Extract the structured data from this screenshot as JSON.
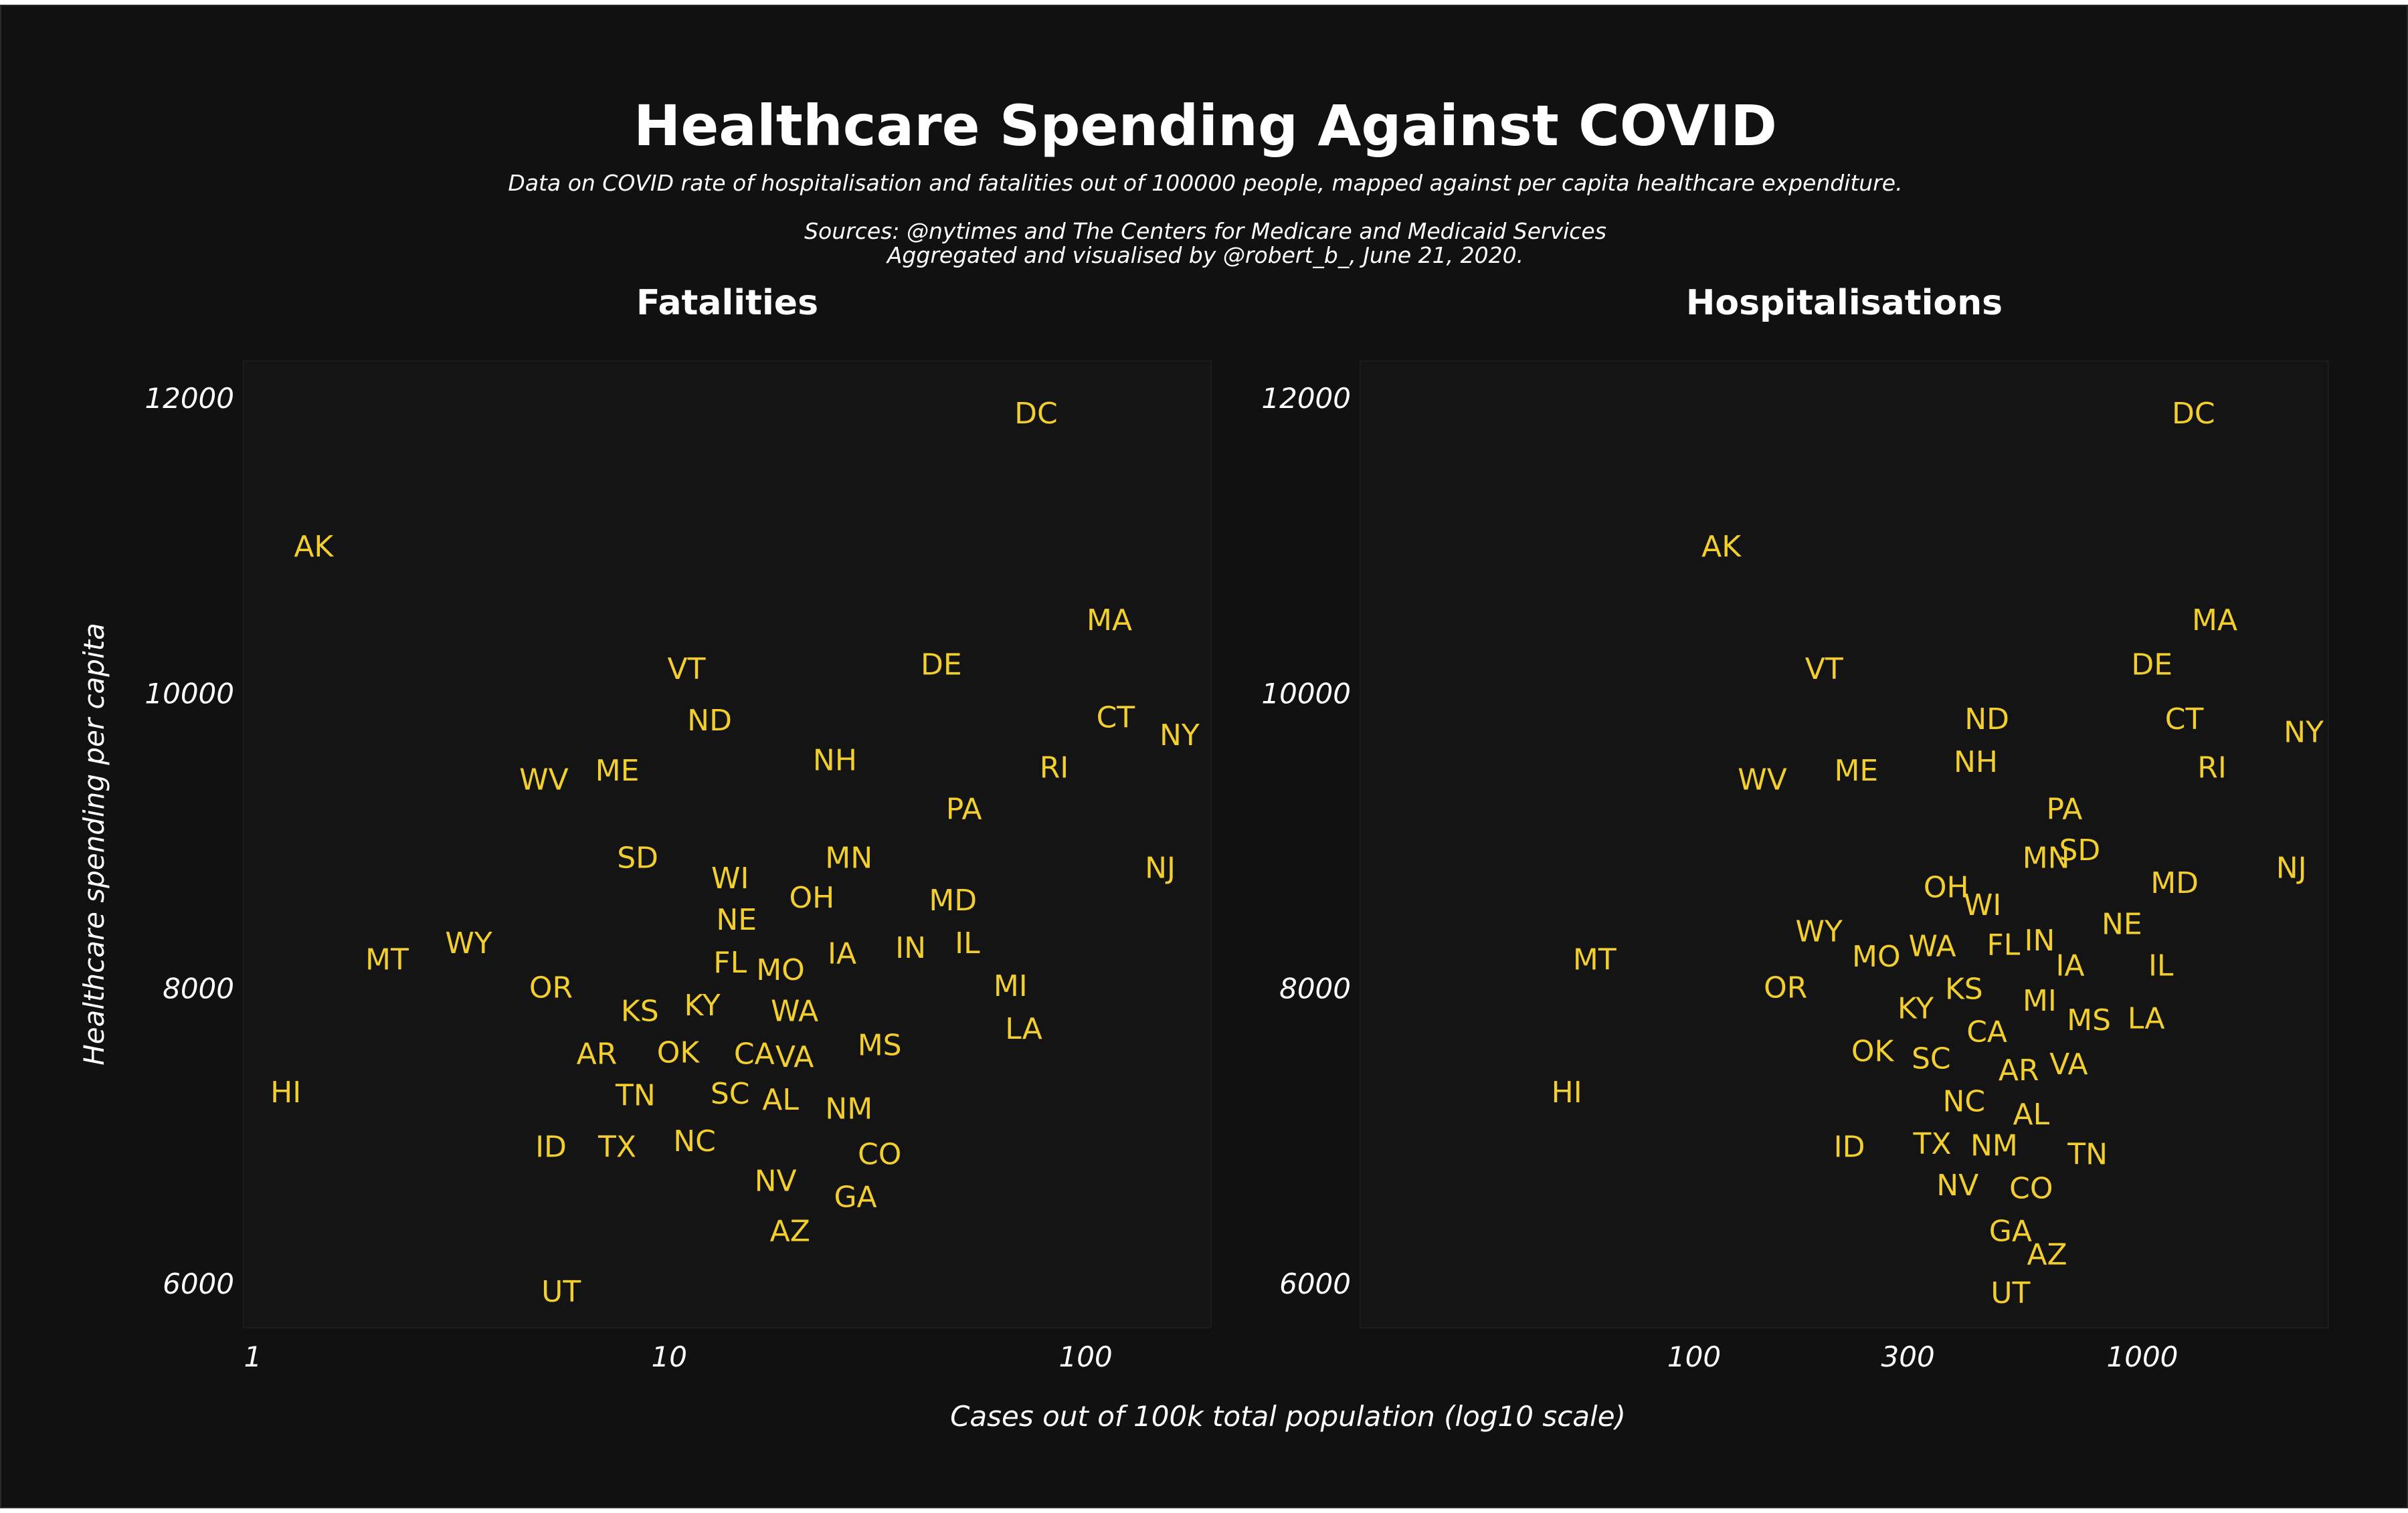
{
  "header": {
    "title": "Healthcare Spending Against COVID",
    "subtitle": "Data on COVID rate of hospitalisation and fatalities out of 100000 people, mapped against per capita healthcare expenditure.",
    "sources": "Sources: @nytimes and The Centers for Medicare and Medicaid Services",
    "credit": "Aggregated and visualised by @robert_b_, June 21, 2020."
  },
  "colors": {
    "background": "#111111",
    "plot_background": "#141414",
    "text": "#ffffff",
    "labels": "#f2cf2e"
  },
  "chart_data": [
    {
      "type": "scatter",
      "title": "Fatalities",
      "xlabel": "Cases out of 100k total population (log10 scale)",
      "ylabel": "Healthcare spending per capita",
      "xscale": "log10",
      "xlim": [
        0.95,
        200
      ],
      "ylim": [
        5700,
        12250
      ],
      "xticks": [
        1,
        10,
        100
      ],
      "xtick_labels": [
        "1",
        "10",
        "100"
      ],
      "yticks": [
        6000,
        8000,
        10000,
        12000
      ],
      "ytick_labels": [
        "6000",
        "8000",
        "10000",
        "12000"
      ],
      "grid": false,
      "points": [
        {
          "label": "DC",
          "x": 76,
          "y": 11900
        },
        {
          "label": "AK",
          "x": 1.4,
          "y": 11000
        },
        {
          "label": "MA",
          "x": 114,
          "y": 10500
        },
        {
          "label": "DE",
          "x": 45,
          "y": 10200
        },
        {
          "label": "VT",
          "x": 11,
          "y": 10170
        },
        {
          "label": "ND",
          "x": 12.5,
          "y": 9820
        },
        {
          "label": "CT",
          "x": 118,
          "y": 9840
        },
        {
          "label": "NY",
          "x": 168,
          "y": 9720
        },
        {
          "label": "NH",
          "x": 25,
          "y": 9550
        },
        {
          "label": "RI",
          "x": 84,
          "y": 9500
        },
        {
          "label": "ME",
          "x": 7.5,
          "y": 9480
        },
        {
          "label": "WV",
          "x": 5,
          "y": 9420
        },
        {
          "label": "PA",
          "x": 51,
          "y": 9220
        },
        {
          "label": "SD",
          "x": 8.4,
          "y": 8890
        },
        {
          "label": "MN",
          "x": 27,
          "y": 8890
        },
        {
          "label": "NJ",
          "x": 151,
          "y": 8820
        },
        {
          "label": "WI",
          "x": 14,
          "y": 8750
        },
        {
          "label": "OH",
          "x": 22,
          "y": 8620
        },
        {
          "label": "MD",
          "x": 48,
          "y": 8600
        },
        {
          "label": "NE",
          "x": 14.5,
          "y": 8470
        },
        {
          "label": "WY",
          "x": 3.3,
          "y": 8310
        },
        {
          "label": "IN",
          "x": 38,
          "y": 8280
        },
        {
          "label": "IL",
          "x": 52,
          "y": 8310
        },
        {
          "label": "MT",
          "x": 2.1,
          "y": 8200
        },
        {
          "label": "FL",
          "x": 14,
          "y": 8180
        },
        {
          "label": "IA",
          "x": 26,
          "y": 8240
        },
        {
          "label": "MO",
          "x": 18.5,
          "y": 8130
        },
        {
          "label": "OR",
          "x": 5.2,
          "y": 8010
        },
        {
          "label": "MI",
          "x": 66,
          "y": 8020
        },
        {
          "label": "KS",
          "x": 8.5,
          "y": 7850
        },
        {
          "label": "KY",
          "x": 12,
          "y": 7890
        },
        {
          "label": "WA",
          "x": 20,
          "y": 7850
        },
        {
          "label": "LA",
          "x": 71,
          "y": 7730
        },
        {
          "label": "AR",
          "x": 6.7,
          "y": 7560
        },
        {
          "label": "OK",
          "x": 10.5,
          "y": 7570
        },
        {
          "label": "CA",
          "x": 16,
          "y": 7560
        },
        {
          "label": "VA",
          "x": 20,
          "y": 7540
        },
        {
          "label": "MS",
          "x": 32,
          "y": 7620
        },
        {
          "label": "HI",
          "x": 1.2,
          "y": 7300
        },
        {
          "label": "TN",
          "x": 8.3,
          "y": 7280
        },
        {
          "label": "SC",
          "x": 14,
          "y": 7290
        },
        {
          "label": "AL",
          "x": 18.5,
          "y": 7250
        },
        {
          "label": "NM",
          "x": 27,
          "y": 7190
        },
        {
          "label": "ID",
          "x": 5.2,
          "y": 6930
        },
        {
          "label": "TX",
          "x": 7.5,
          "y": 6930
        },
        {
          "label": "NC",
          "x": 11.5,
          "y": 6970
        },
        {
          "label": "CO",
          "x": 32,
          "y": 6880
        },
        {
          "label": "NV",
          "x": 18,
          "y": 6700
        },
        {
          "label": "GA",
          "x": 28,
          "y": 6590
        },
        {
          "label": "AZ",
          "x": 19.5,
          "y": 6360
        },
        {
          "label": "UT",
          "x": 5.5,
          "y": 5950
        }
      ]
    },
    {
      "type": "scatter",
      "title": "Hospitalisations",
      "xlabel": "Cases out of 100k total population (log10 scale)",
      "ylabel": "Healthcare spending per capita",
      "xscale": "log10",
      "xlim": [
        18,
        2600
      ],
      "ylim": [
        5700,
        12250
      ],
      "xticks": [
        100,
        300,
        1000
      ],
      "xtick_labels": [
        "100",
        "300",
        "1000"
      ],
      "yticks": [
        6000,
        8000,
        10000,
        12000
      ],
      "ytick_labels": [
        "6000",
        "8000",
        "10000",
        "12000"
      ],
      "grid": false,
      "points": [
        {
          "label": "DC",
          "x": 1300,
          "y": 11900
        },
        {
          "label": "AK",
          "x": 115,
          "y": 11000
        },
        {
          "label": "MA",
          "x": 1450,
          "y": 10500
        },
        {
          "label": "DE",
          "x": 1050,
          "y": 10200
        },
        {
          "label": "VT",
          "x": 195,
          "y": 10170
        },
        {
          "label": "ND",
          "x": 450,
          "y": 9830
        },
        {
          "label": "CT",
          "x": 1240,
          "y": 9830
        },
        {
          "label": "NY",
          "x": 2290,
          "y": 9740
        },
        {
          "label": "NH",
          "x": 425,
          "y": 9540
        },
        {
          "label": "RI",
          "x": 1430,
          "y": 9500
        },
        {
          "label": "ME",
          "x": 230,
          "y": 9480
        },
        {
          "label": "WV",
          "x": 142,
          "y": 9420
        },
        {
          "label": "PA",
          "x": 670,
          "y": 9220
        },
        {
          "label": "MN",
          "x": 610,
          "y": 8890
        },
        {
          "label": "SD",
          "x": 725,
          "y": 8940
        },
        {
          "label": "NJ",
          "x": 2150,
          "y": 8820
        },
        {
          "label": "MD",
          "x": 1180,
          "y": 8720
        },
        {
          "label": "OH",
          "x": 365,
          "y": 8690
        },
        {
          "label": "WI",
          "x": 440,
          "y": 8570
        },
        {
          "label": "NE",
          "x": 900,
          "y": 8440
        },
        {
          "label": "WY",
          "x": 190,
          "y": 8390
        },
        {
          "label": "IN",
          "x": 590,
          "y": 8330
        },
        {
          "label": "WA",
          "x": 340,
          "y": 8290
        },
        {
          "label": "FL",
          "x": 490,
          "y": 8300
        },
        {
          "label": "MO",
          "x": 255,
          "y": 8220
        },
        {
          "label": "MT",
          "x": 60,
          "y": 8200
        },
        {
          "label": "IA",
          "x": 690,
          "y": 8160
        },
        {
          "label": "IL",
          "x": 1100,
          "y": 8160
        },
        {
          "label": "OR",
          "x": 160,
          "y": 8010
        },
        {
          "label": "KS",
          "x": 400,
          "y": 8000
        },
        {
          "label": "MI",
          "x": 590,
          "y": 7920
        },
        {
          "label": "KY",
          "x": 312,
          "y": 7870
        },
        {
          "label": "MS",
          "x": 760,
          "y": 7790
        },
        {
          "label": "LA",
          "x": 1020,
          "y": 7800
        },
        {
          "label": "CA",
          "x": 450,
          "y": 7710
        },
        {
          "label": "OK",
          "x": 250,
          "y": 7580
        },
        {
          "label": "SC",
          "x": 338,
          "y": 7530
        },
        {
          "label": "AR",
          "x": 530,
          "y": 7450
        },
        {
          "label": "VA",
          "x": 685,
          "y": 7490
        },
        {
          "label": "HI",
          "x": 52,
          "y": 7300
        },
        {
          "label": "NC",
          "x": 400,
          "y": 7240
        },
        {
          "label": "AL",
          "x": 565,
          "y": 7150
        },
        {
          "label": "TN",
          "x": 755,
          "y": 6880
        },
        {
          "label": "ID",
          "x": 222,
          "y": 6930
        },
        {
          "label": "TX",
          "x": 340,
          "y": 6950
        },
        {
          "label": "NM",
          "x": 467,
          "y": 6940
        },
        {
          "label": "NV",
          "x": 387,
          "y": 6670
        },
        {
          "label": "CO",
          "x": 565,
          "y": 6650
        },
        {
          "label": "GA",
          "x": 508,
          "y": 6360
        },
        {
          "label": "AZ",
          "x": 613,
          "y": 6200
        },
        {
          "label": "UT",
          "x": 508,
          "y": 5940
        }
      ]
    }
  ]
}
